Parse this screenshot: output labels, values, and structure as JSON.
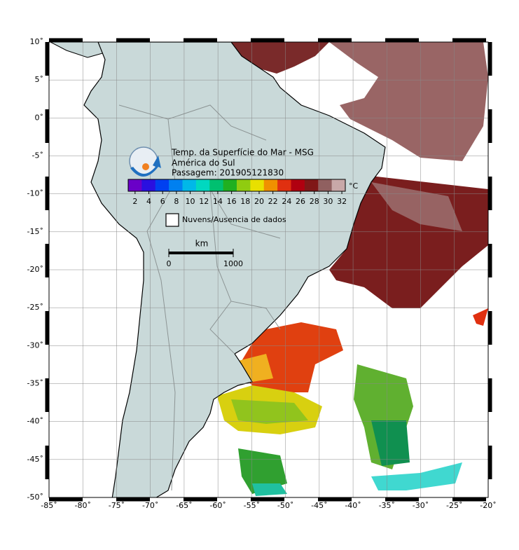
{
  "map": {
    "title": "Temp. da Superfície do Mar - MSG",
    "region": "América do Sul",
    "pass": "Passagem: 201905121830",
    "xlim": [
      -85,
      -20
    ],
    "ylim": [
      -50,
      10
    ],
    "xticks": [
      {
        "value": -85,
        "label": "-85˚"
      },
      {
        "value": -80,
        "label": "-80˚"
      },
      {
        "value": -75,
        "label": "-75˚"
      },
      {
        "value": -70,
        "label": "-70˚"
      },
      {
        "value": -65,
        "label": "-65˚"
      },
      {
        "value": -60,
        "label": "-60˚"
      },
      {
        "value": -55,
        "label": "-55˚"
      },
      {
        "value": -50,
        "label": "-50˚"
      },
      {
        "value": -45,
        "label": "-45˚"
      },
      {
        "value": -40,
        "label": "-40˚"
      },
      {
        "value": -35,
        "label": "-35˚"
      },
      {
        "value": -30,
        "label": "-30˚"
      },
      {
        "value": -25,
        "label": "-25˚"
      },
      {
        "value": -20,
        "label": "-20˚"
      }
    ],
    "yticks": [
      {
        "value": 10,
        "label": "10˚"
      },
      {
        "value": 5,
        "label": "5˚"
      },
      {
        "value": 0,
        "label": "0˚"
      },
      {
        "value": -5,
        "label": "-5˚"
      },
      {
        "value": -10,
        "label": "-10˚"
      },
      {
        "value": -15,
        "label": "-15˚"
      },
      {
        "value": -20,
        "label": "-20˚"
      },
      {
        "value": -25,
        "label": "-25˚"
      },
      {
        "value": -30,
        "label": "-30˚"
      },
      {
        "value": -35,
        "label": "-35˚"
      },
      {
        "value": -40,
        "label": "-40˚"
      },
      {
        "value": -45,
        "label": "-45˚"
      },
      {
        "value": -50,
        "label": "-50˚"
      }
    ],
    "colorbar": {
      "unit": "°C",
      "lim": [
        1,
        32.5
      ],
      "ticks": [
        2,
        4,
        6,
        8,
        10,
        12,
        14,
        16,
        18,
        20,
        22,
        24,
        26,
        28,
        30,
        32
      ],
      "colors": [
        "#6a00c8",
        "#2a10e0",
        "#0040f0",
        "#0080f0",
        "#00b8e8",
        "#00d8c0",
        "#00c070",
        "#20b020",
        "#90cc10",
        "#e8e000",
        "#f09000",
        "#e03010",
        "#b00010",
        "#801818",
        "#906060",
        "#c8a8a8"
      ]
    },
    "legend": "Nuvens/Ausencia de dados",
    "scale_bar": {
      "unit": "km",
      "ticks": [
        0,
        1000
      ]
    }
  }
}
